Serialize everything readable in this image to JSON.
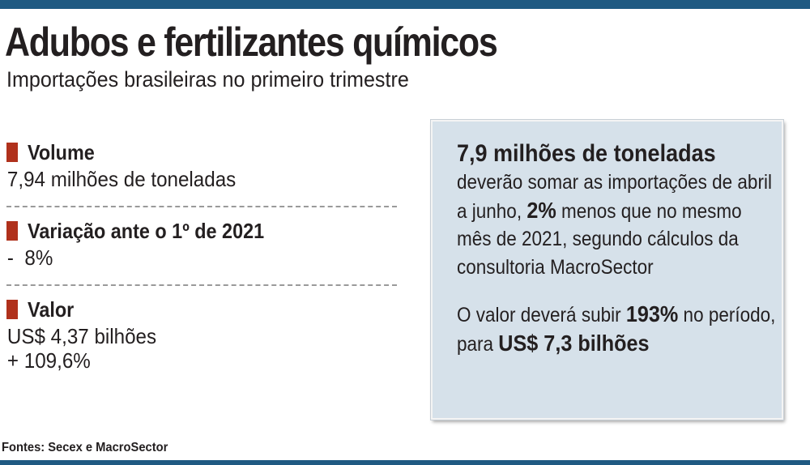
{
  "header": {
    "title": "Adubos e fertilizantes químicos",
    "subtitle": "Importações brasileiras no primeiro trimestre"
  },
  "metrics": [
    {
      "label": "Volume",
      "values": [
        "7,94 milhões de toneladas"
      ]
    },
    {
      "label": "Variação ante o 1º de 2021",
      "values": [
        "-  8%"
      ]
    },
    {
      "label": "Valor",
      "values": [
        "US$ 4,37 bilhões",
        "+ 109,6%"
      ]
    }
  ],
  "info_box": {
    "headline": "7,9 milhões de toneladas",
    "p1_a": "deverão somar as importações de abril a junho, ",
    "p1_b": "2%",
    "p1_c": " menos que no mesmo mês de 2021, segundo cálculos da consultoria MacroSector",
    "p2_a": "O valor deverá subir ",
    "p2_b": "193%",
    "p2_c": " no período, para ",
    "p2_d": "US$ 7,3 bilhões"
  },
  "footer": {
    "source": "Fontes: Secex e MacroSector"
  },
  "colors": {
    "rule": "#1f5a82",
    "marker": "#b0311c",
    "box_bg": "#d6e1ea"
  }
}
